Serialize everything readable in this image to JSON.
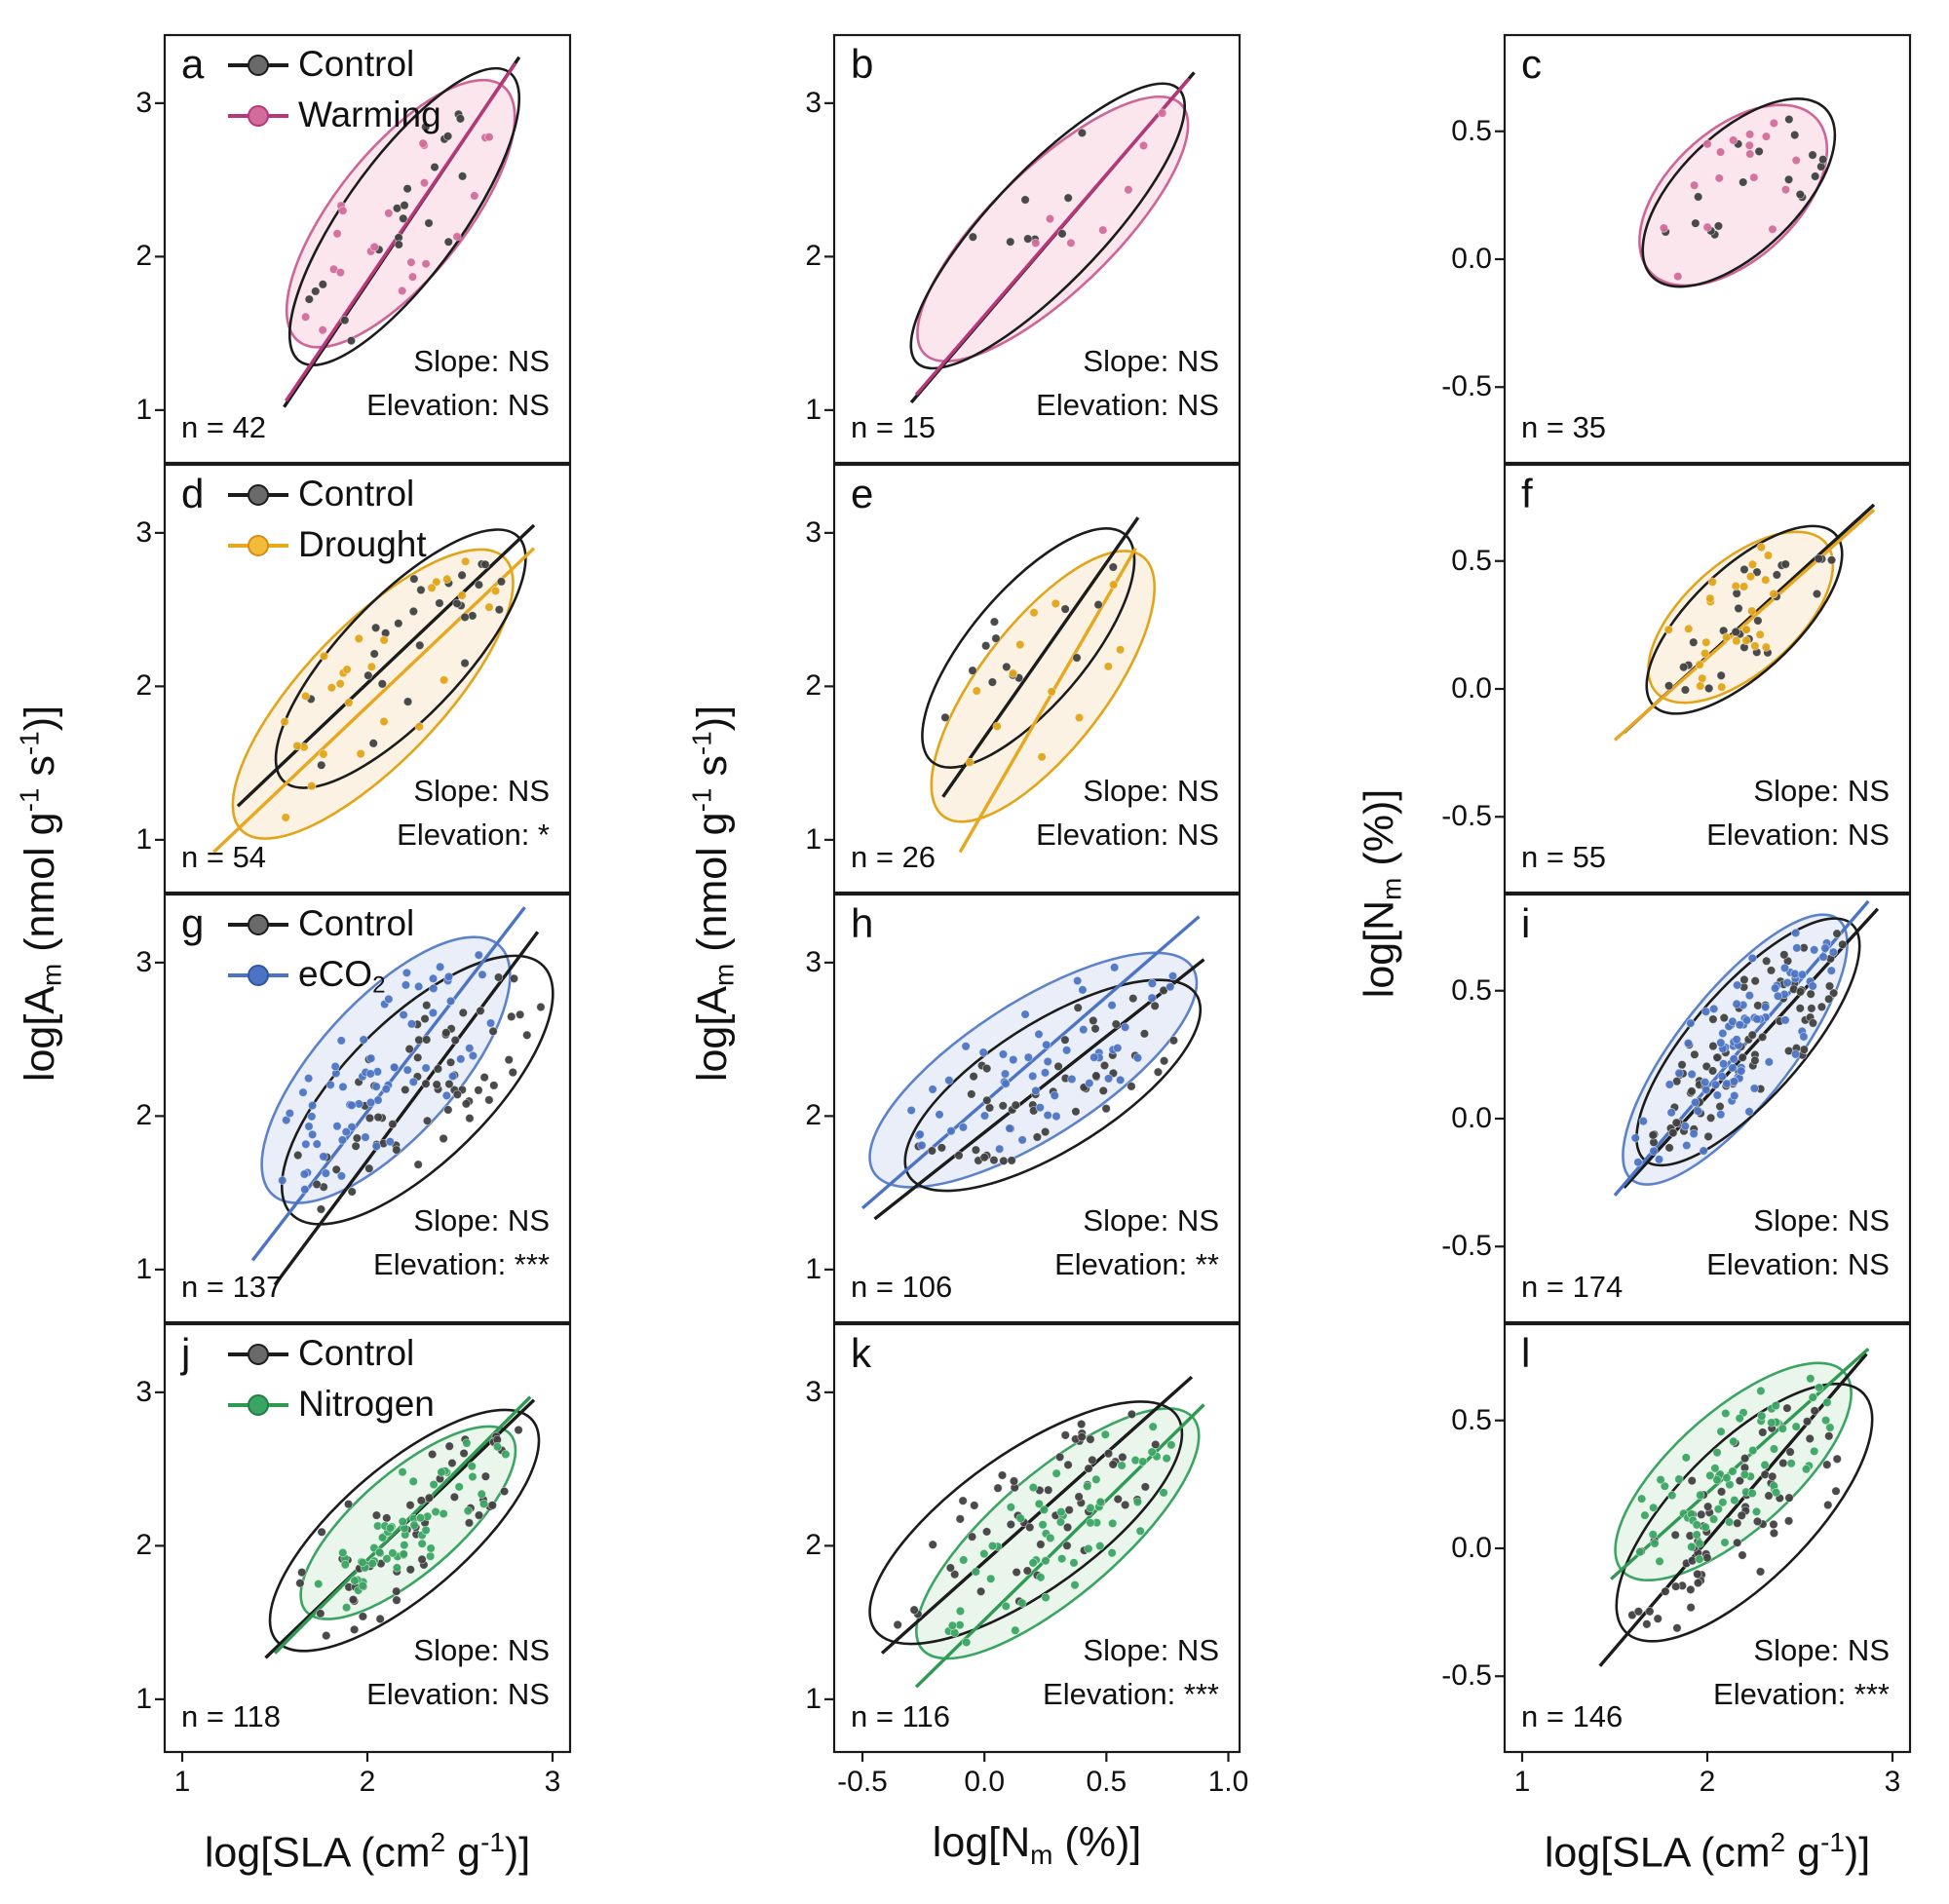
{
  "chart_data": {
    "type": "scatter",
    "layout": {
      "rows": 4,
      "cols": 3,
      "grid": false,
      "legend_position": "top-left of first-column panels"
    },
    "palette": {
      "control": {
        "line": "#1c1c1c",
        "point": "#404040",
        "ellipse_stroke": "#1c1c1c",
        "ellipse_fill": "none",
        "marker_fill": "#6a6a6a",
        "marker_stroke": "#1c1c1c"
      },
      "warming": {
        "line": "#b8377a",
        "point": "#d26d9b",
        "ellipse_stroke": "#cf6596",
        "ellipse_fill": "#f6d5e0",
        "marker_fill": "#d26d9b",
        "marker_stroke": "#b8377a"
      },
      "drought": {
        "line": "#e7a71e",
        "point": "#e2a418",
        "ellipse_stroke": "#e2a418",
        "ellipse_fill": "#f8ead0",
        "marker_fill": "#f2bc3a",
        "marker_stroke": "#d98c12"
      },
      "eco2": {
        "line": "#4d74c4",
        "point": "#4d74c4",
        "ellipse_stroke": "#5d82cc",
        "ellipse_fill": "#dbe3f3",
        "marker_fill": "#4d74c4",
        "marker_stroke": "#2f55a4"
      },
      "nitrogen": {
        "line": "#2e9a52",
        "point": "#3aa562",
        "ellipse_stroke": "#3aa562",
        "ellipse_fill": "#dceede",
        "marker_fill": "#3aa562",
        "marker_stroke": "#1f7f45"
      }
    },
    "legend_labels": {
      "control": [
        {
          "t": "Control"
        }
      ],
      "warming": [
        {
          "t": "Warming"
        }
      ],
      "drought": [
        {
          "t": "Drought"
        }
      ],
      "eco2": [
        {
          "t": "eCO"
        },
        {
          "t": "2",
          "sub": true
        }
      ],
      "nitrogen": [
        {
          "t": "Nitrogen"
        }
      ]
    },
    "titles": {
      "am": [
        {
          "t": "log[A"
        },
        {
          "t": "m",
          "sub": true
        },
        {
          "t": " (nmol g"
        },
        {
          "t": "-1",
          "sup": true
        },
        {
          "t": " s"
        },
        {
          "t": "-1",
          "sup": true
        },
        {
          "t": ")]"
        }
      ],
      "sla": [
        {
          "t": "log[SLA (cm"
        },
        {
          "t": "2",
          "sup": true
        },
        {
          "t": " g"
        },
        {
          "t": "-1",
          "sup": true
        },
        {
          "t": ")]"
        }
      ],
      "nm": [
        {
          "t": "log[N"
        },
        {
          "t": "m",
          "sub": true
        },
        {
          "t": " (%)]"
        }
      ]
    },
    "columns": [
      {
        "x_range": [
          0.9,
          3.1
        ],
        "y_range": [
          0.65,
          3.45
        ],
        "x_ticks": [
          {
            "v": 1,
            "label": "1"
          },
          {
            "v": 2,
            "label": "2"
          },
          {
            "v": 3,
            "label": "3"
          }
        ],
        "y_ticks": [
          {
            "v": 3,
            "label": "3"
          },
          {
            "v": 2,
            "label": "2"
          },
          {
            "v": 1,
            "label": "1"
          }
        ],
        "x_title": "sla",
        "y_title": "am"
      },
      {
        "x_range": [
          -0.62,
          1.05
        ],
        "y_range": [
          0.65,
          3.45
        ],
        "x_ticks": [
          {
            "v": -0.5,
            "label": "-0.5"
          },
          {
            "v": 0,
            "label": "0.0"
          },
          {
            "v": 0.5,
            "label": "0.5"
          },
          {
            "v": 1,
            "label": "1.0"
          }
        ],
        "y_ticks": [
          {
            "v": 3,
            "label": "3"
          },
          {
            "v": 2,
            "label": "2"
          },
          {
            "v": 1,
            "label": "1"
          }
        ],
        "x_title": "nm",
        "y_title": "am"
      },
      {
        "x_range": [
          0.9,
          3.1
        ],
        "y_range": [
          -0.8,
          0.88
        ],
        "x_ticks": [
          {
            "v": 1,
            "label": "1"
          },
          {
            "v": 2,
            "label": "2"
          },
          {
            "v": 3,
            "label": "3"
          }
        ],
        "y_ticks": [
          {
            "v": 0.5,
            "label": "0.5"
          },
          {
            "v": 0,
            "label": "0.0"
          },
          {
            "v": -0.5,
            "label": "-0.5"
          }
        ],
        "x_title": "sla",
        "y_title": "nm"
      }
    ],
    "panels": [
      {
        "letter": "a",
        "col": 0,
        "n": 42,
        "n_label": "n = 42",
        "stats": {
          "slope": "Slope: NS",
          "elevation": "Elevation: NS"
        },
        "legend": [
          "control",
          "warming"
        ],
        "series": [
          {
            "group": "control",
            "seed": 101,
            "n_points": 21,
            "line": [
              1.55,
              1.02,
              2.82,
              3.3
            ],
            "ellipse": {
              "cx": 2.2,
              "cy": 2.26,
              "rx": 1.1,
              "ry": 0.33,
              "angle": 60
            }
          },
          {
            "group": "warming",
            "seed": 102,
            "n_points": 21,
            "line": [
              1.56,
              1.06,
              2.8,
              3.26
            ],
            "ellipse": {
              "cx": 2.18,
              "cy": 2.28,
              "rx": 1.0,
              "ry": 0.37,
              "angle": 58
            }
          }
        ]
      },
      {
        "letter": "b",
        "col": 1,
        "n": 15,
        "n_label": "n = 15",
        "stats": {
          "slope": "Slope: NS",
          "elevation": "Elevation: NS"
        },
        "series": [
          {
            "group": "control",
            "seed": 103,
            "n_points": 8,
            "line": [
              -0.3,
              1.05,
              0.86,
              3.2
            ],
            "ellipse": {
              "cx": 0.26,
              "cy": 2.2,
              "rx": 1.05,
              "ry": 0.27,
              "angle": 61
            }
          },
          {
            "group": "warming",
            "seed": 104,
            "n_points": 7,
            "line": [
              -0.28,
              1.1,
              0.84,
              3.16
            ],
            "ellipse": {
              "cx": 0.28,
              "cy": 2.18,
              "rx": 0.98,
              "ry": 0.3,
              "angle": 60
            }
          }
        ]
      },
      {
        "letter": "c",
        "col": 2,
        "n": 35,
        "n_label": "n = 35",
        "series": [
          {
            "group": "control",
            "seed": 105,
            "n_points": 18,
            "ellipse": {
              "cx": 2.17,
              "cy": 0.26,
              "rx": 0.58,
              "ry": 0.26,
              "angle": 30
            }
          },
          {
            "group": "warming",
            "seed": 106,
            "n_points": 17,
            "ellipse": {
              "cx": 2.14,
              "cy": 0.25,
              "rx": 0.55,
              "ry": 0.28,
              "angle": 27
            }
          }
        ]
      },
      {
        "letter": "d",
        "col": 0,
        "n": 54,
        "n_label": "n = 54",
        "stats": {
          "slope": "Slope: NS",
          "elevation": "Elevation: *"
        },
        "legend": [
          "control",
          "drought"
        ],
        "series": [
          {
            "group": "control",
            "seed": 107,
            "n_points": 27,
            "line": [
              1.3,
              1.22,
              2.9,
              3.05
            ],
            "ellipse": {
              "cx": 2.18,
              "cy": 2.18,
              "rx": 1.02,
              "ry": 0.35,
              "angle": 53
            }
          },
          {
            "group": "drought",
            "seed": 108,
            "n_points": 27,
            "line": [
              1.17,
              0.92,
              2.9,
              2.9
            ],
            "ellipse": {
              "cx": 2.03,
              "cy": 1.95,
              "rx": 1.14,
              "ry": 0.4,
              "angle": 53
            }
          }
        ]
      },
      {
        "letter": "e",
        "col": 1,
        "n": 26,
        "n_label": "n = 26",
        "stats": {
          "slope": "Slope: NS",
          "elevation": "Elevation: NS"
        },
        "series": [
          {
            "group": "control",
            "seed": 109,
            "n_points": 13,
            "line": [
              -0.17,
              1.28,
              0.63,
              3.1
            ],
            "ellipse": {
              "cx": 0.18,
              "cy": 2.25,
              "rx": 0.85,
              "ry": 0.27,
              "angle": 65
            }
          },
          {
            "group": "drought",
            "seed": 110,
            "n_points": 13,
            "line": [
              -0.1,
              0.92,
              0.62,
              2.9
            ],
            "ellipse": {
              "cx": 0.24,
              "cy": 2.0,
              "rx": 0.95,
              "ry": 0.29,
              "angle": 67
            }
          }
        ]
      },
      {
        "letter": "f",
        "col": 2,
        "n": 55,
        "n_label": "n = 55",
        "stats": {
          "slope": "Slope: NS",
          "elevation": "Elevation: NS"
        },
        "series": [
          {
            "group": "control",
            "seed": 111,
            "n_points": 28,
            "line": [
              1.55,
              -0.17,
              2.9,
              0.72
            ],
            "ellipse": {
              "cx": 2.2,
              "cy": 0.27,
              "rx": 0.6,
              "ry": 0.23,
              "angle": 31
            }
          },
          {
            "group": "drought",
            "seed": 112,
            "n_points": 27,
            "line": [
              1.5,
              -0.2,
              2.9,
              0.7
            ],
            "ellipse": {
              "cx": 2.18,
              "cy": 0.28,
              "rx": 0.55,
              "ry": 0.24,
              "angle": 28
            }
          }
        ]
      },
      {
        "letter": "g",
        "col": 0,
        "n": 137,
        "n_label": "n = 137",
        "stats": {
          "slope": "Slope: NS",
          "elevation": "Elevation: ***"
        },
        "legend": [
          "control",
          "eco2"
        ],
        "series": [
          {
            "group": "control",
            "seed": 113,
            "n_points": 68,
            "line": [
              1.5,
              0.9,
              2.92,
              3.2
            ],
            "ellipse": {
              "cx": 2.27,
              "cy": 2.17,
              "rx": 1.06,
              "ry": 0.42,
              "angle": 52
            }
          },
          {
            "group": "eco2",
            "seed": 114,
            "n_points": 69,
            "line": [
              1.38,
              1.06,
              2.85,
              3.36
            ],
            "ellipse": {
              "cx": 2.1,
              "cy": 2.3,
              "rx": 1.02,
              "ry": 0.4,
              "angle": 55
            }
          }
        ]
      },
      {
        "letter": "h",
        "col": 1,
        "n": 106,
        "n_label": "n = 106",
        "stats": {
          "slope": "Slope: NS",
          "elevation": "Elevation: **"
        },
        "series": [
          {
            "group": "control",
            "seed": 115,
            "n_points": 53,
            "line": [
              -0.45,
              1.33,
              0.9,
              3.02
            ],
            "ellipse": {
              "cx": 0.28,
              "cy": 2.2,
              "rx": 0.85,
              "ry": 0.34,
              "angle": 50
            }
          },
          {
            "group": "eco2",
            "seed": 116,
            "n_points": 53,
            "line": [
              -0.5,
              1.4,
              0.88,
              3.3
            ],
            "ellipse": {
              "cx": 0.2,
              "cy": 2.3,
              "rx": 0.95,
              "ry": 0.36,
              "angle": 50
            }
          }
        ]
      },
      {
        "letter": "i",
        "col": 2,
        "n": 174,
        "n_label": "n = 174",
        "stats": {
          "slope": "Slope: NS",
          "elevation": "Elevation: NS"
        },
        "series": [
          {
            "group": "control",
            "seed": 117,
            "n_points": 87,
            "line": [
              1.55,
              -0.27,
              2.92,
              0.82
            ],
            "ellipse": {
              "cx": 2.22,
              "cy": 0.3,
              "rx": 0.73,
              "ry": 0.25,
              "angle": 37
            }
          },
          {
            "group": "eco2",
            "seed": 118,
            "n_points": 87,
            "line": [
              1.5,
              -0.3,
              2.87,
              0.85
            ],
            "ellipse": {
              "cx": 2.15,
              "cy": 0.27,
              "rx": 0.76,
              "ry": 0.26,
              "angle": 40
            }
          }
        ]
      },
      {
        "letter": "j",
        "col": 0,
        "n": 118,
        "n_label": "n = 118",
        "stats": {
          "slope": "Slope: NS",
          "elevation": "Elevation: NS"
        },
        "legend": [
          "control",
          "nitrogen"
        ],
        "series": [
          {
            "group": "control",
            "seed": 119,
            "n_points": 59,
            "line": [
              1.45,
              1.27,
              2.9,
              2.95
            ],
            "ellipse": {
              "cx": 2.2,
              "cy": 2.1,
              "rx": 1.0,
              "ry": 0.38,
              "angle": 48
            }
          },
          {
            "group": "nitrogen",
            "seed": 120,
            "n_points": 59,
            "line": [
              1.5,
              1.3,
              2.88,
              2.97
            ],
            "ellipse": {
              "cx": 2.22,
              "cy": 2.15,
              "rx": 0.8,
              "ry": 0.3,
              "angle": 48
            }
          }
        ]
      },
      {
        "letter": "k",
        "col": 1,
        "n": 116,
        "n_label": "n = 116",
        "stats": {
          "slope": "Slope: NS",
          "elevation": "Elevation: ***"
        },
        "series": [
          {
            "group": "control",
            "seed": 121,
            "n_points": 58,
            "line": [
              -0.42,
              1.3,
              0.85,
              3.1
            ],
            "ellipse": {
              "cx": 0.17,
              "cy": 2.15,
              "rx": 0.95,
              "ry": 0.36,
              "angle": 53
            }
          },
          {
            "group": "nitrogen",
            "seed": 122,
            "n_points": 58,
            "line": [
              -0.28,
              1.08,
              0.9,
              2.92
            ],
            "ellipse": {
              "cx": 0.3,
              "cy": 2.08,
              "rx": 0.95,
              "ry": 0.31,
              "angle": 57
            }
          }
        ]
      },
      {
        "letter": "l",
        "col": 2,
        "n": 146,
        "n_label": "n = 146",
        "stats": {
          "slope": "Slope: NS",
          "elevation": "Elevation: ***"
        },
        "series": [
          {
            "group": "control",
            "seed": 123,
            "n_points": 73,
            "line": [
              1.42,
              -0.46,
              2.86,
              0.76
            ],
            "ellipse": {
              "cx": 2.2,
              "cy": 0.14,
              "rx": 0.8,
              "ry": 0.3,
              "angle": 33
            }
          },
          {
            "group": "nitrogen",
            "seed": 124,
            "n_points": 73,
            "line": [
              1.48,
              -0.12,
              2.87,
              0.78
            ],
            "ellipse": {
              "cx": 2.14,
              "cy": 0.3,
              "rx": 0.72,
              "ry": 0.26,
              "angle": 30
            }
          }
        ]
      }
    ]
  }
}
